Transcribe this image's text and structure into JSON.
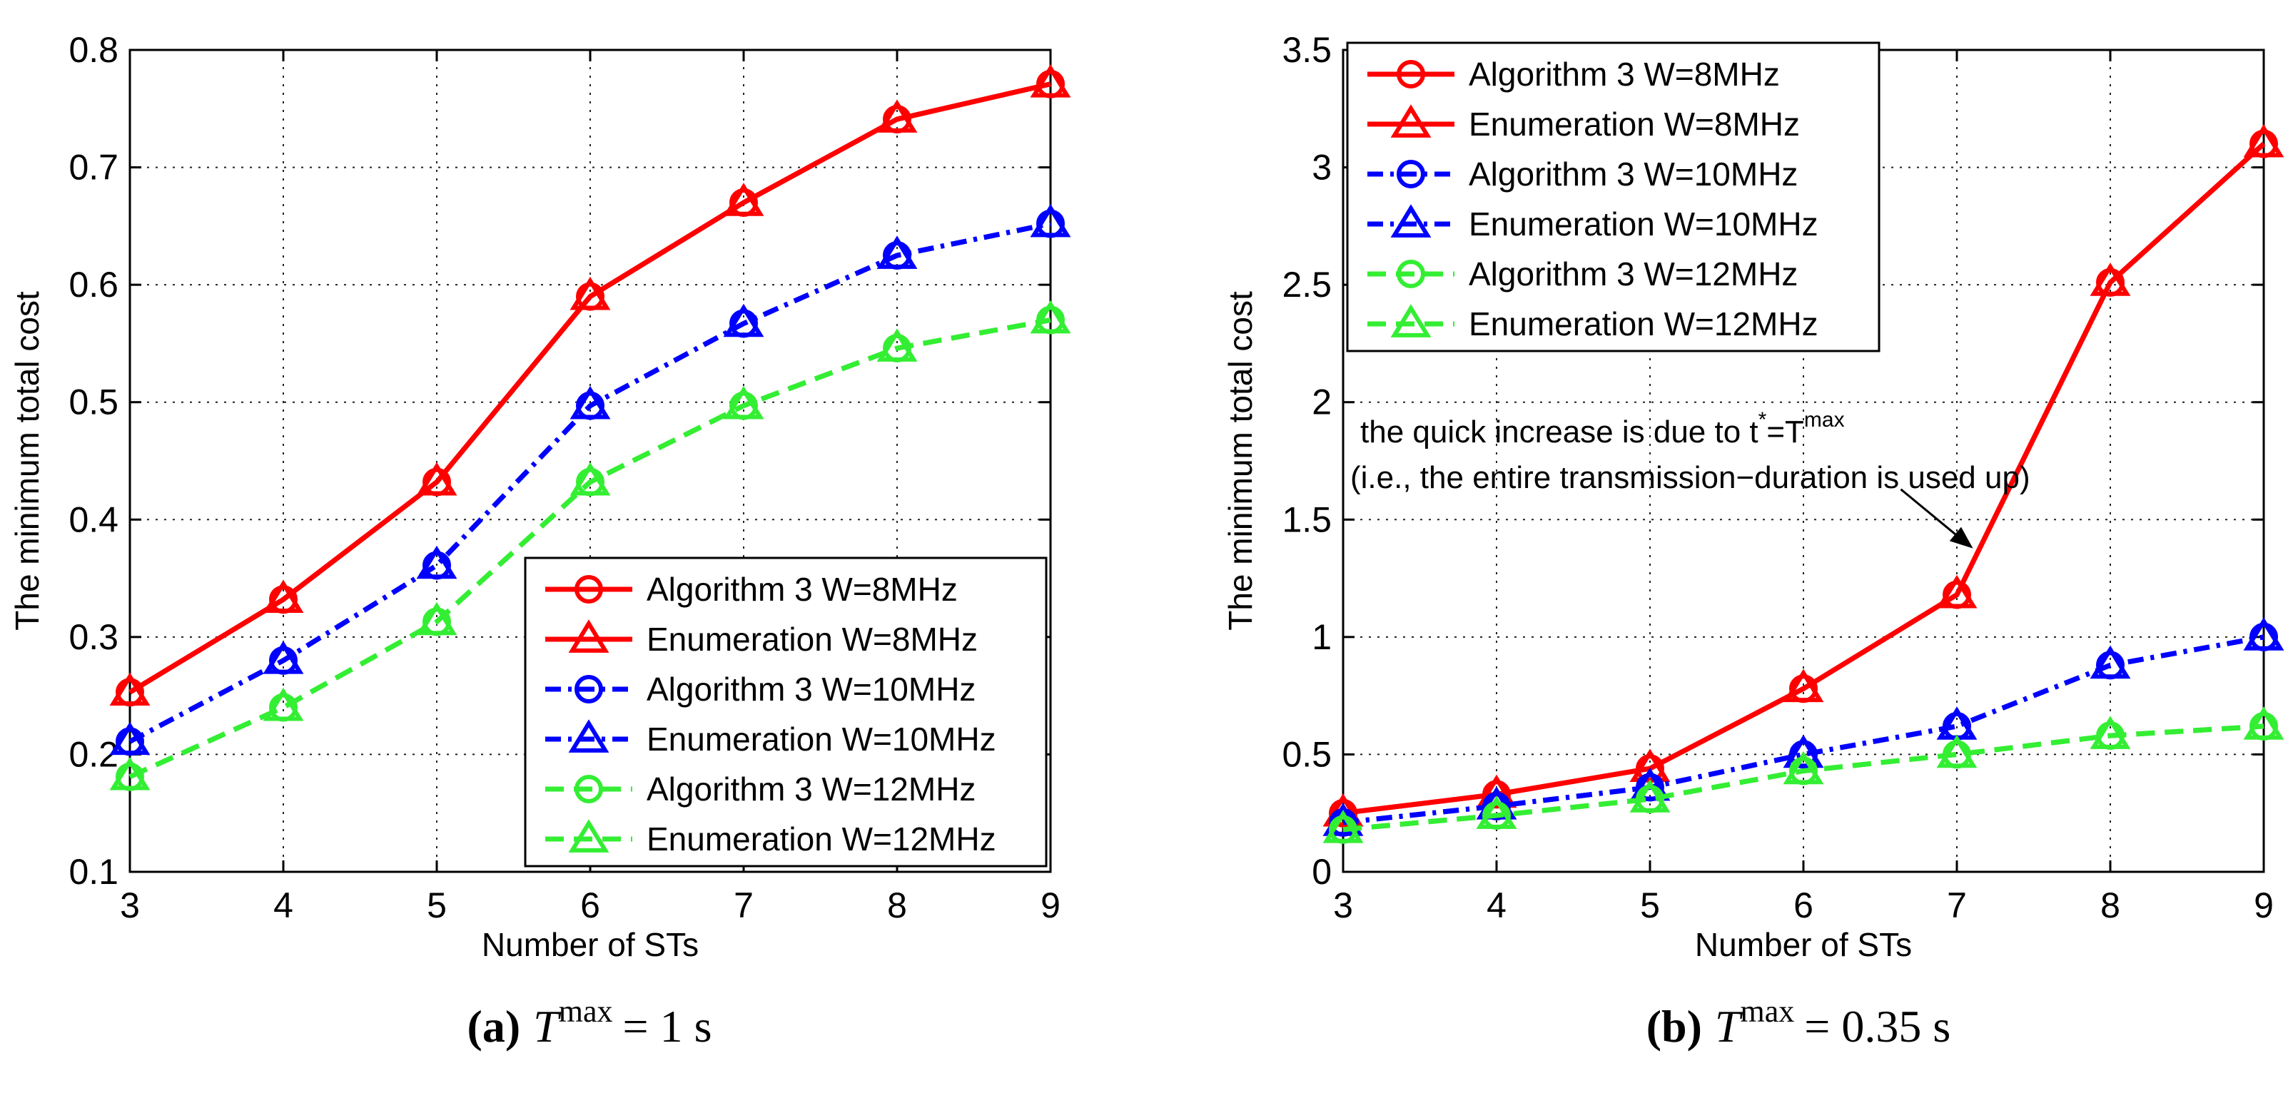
{
  "chart_data": [
    {
      "type": "line",
      "panel_label": "(a)",
      "caption_symbol": "T",
      "caption_superscript": "max",
      "caption_value": "= 1 s",
      "xlabel": "Number of STs",
      "ylabel": "The minimum total cost",
      "x": [
        3,
        4,
        5,
        6,
        7,
        8,
        9
      ],
      "xlim": [
        3,
        9
      ],
      "ylim": [
        0.1,
        0.8
      ],
      "xticks": [
        "3",
        "4",
        "5",
        "6",
        "7",
        "8",
        "9"
      ],
      "yticks": [
        "0.1",
        "0.2",
        "0.3",
        "0.4",
        "0.5",
        "0.6",
        "0.7",
        "0.8"
      ],
      "grid": true,
      "legend_position": "bottom-right",
      "series": [
        {
          "name": "Algorithm 3 W=8MHz",
          "values": [
            0.253,
            0.332,
            0.432,
            0.59,
            0.67,
            0.741,
            0.771
          ],
          "color": "#ff0000",
          "dash": "solid",
          "marker": "circle"
        },
        {
          "name": "Enumeration W=8MHz",
          "values": [
            0.253,
            0.332,
            0.432,
            0.59,
            0.67,
            0.741,
            0.771
          ],
          "color": "#ff0000",
          "dash": "solid",
          "marker": "triangle"
        },
        {
          "name": "Algorithm 3 W=10MHz",
          "values": [
            0.211,
            0.28,
            0.361,
            0.497,
            0.567,
            0.625,
            0.652
          ],
          "color": "#0000ff",
          "dash": "dashdot",
          "marker": "circle"
        },
        {
          "name": "Enumeration W=10MHz",
          "values": [
            0.211,
            0.28,
            0.361,
            0.497,
            0.567,
            0.625,
            0.652
          ],
          "color": "#0000ff",
          "dash": "dashdot",
          "marker": "triangle"
        },
        {
          "name": "Algorithm 3 W=12MHz",
          "values": [
            0.181,
            0.24,
            0.313,
            0.432,
            0.497,
            0.546,
            0.57
          ],
          "color": "#33ee33",
          "dash": "dashed",
          "marker": "circle"
        },
        {
          "name": "Enumeration W=12MHz",
          "values": [
            0.181,
            0.24,
            0.313,
            0.432,
            0.497,
            0.546,
            0.57
          ],
          "color": "#33ee33",
          "dash": "dashed",
          "marker": "triangle"
        }
      ]
    },
    {
      "type": "line",
      "panel_label": "(b)",
      "caption_symbol": "T",
      "caption_superscript": "max",
      "caption_value": "= 0.35 s",
      "xlabel": "Number of STs",
      "ylabel": "The minimum total cost",
      "x": [
        3,
        4,
        5,
        6,
        7,
        8,
        9
      ],
      "xlim": [
        3,
        9
      ],
      "ylim": [
        0,
        3.5
      ],
      "xticks": [
        "3",
        "4",
        "5",
        "6",
        "7",
        "8",
        "9"
      ],
      "yticks": [
        "0",
        "0.5",
        "1",
        "1.5",
        "2",
        "2.5",
        "3",
        "3.5"
      ],
      "grid": true,
      "legend_position": "top-left",
      "annotation": {
        "line1": "the quick increase is due to t",
        "line1_superscript": "*",
        "line1_tail": "=T",
        "line1_tail_superscript": "max",
        "line2": "(i.e., the entire transmission−duration is used up)",
        "arrow_target": {
          "x": 7.1,
          "y": 1.38
        }
      },
      "series": [
        {
          "name": "Algorithm 3 W=8MHz",
          "values": [
            0.25,
            0.33,
            0.44,
            0.78,
            1.18,
            2.51,
            3.1
          ],
          "color": "#ff0000",
          "dash": "solid",
          "marker": "circle"
        },
        {
          "name": "Enumeration W=8MHz",
          "values": [
            0.25,
            0.33,
            0.44,
            0.78,
            1.18,
            2.51,
            3.1
          ],
          "color": "#ff0000",
          "dash": "solid",
          "marker": "triangle"
        },
        {
          "name": "Algorithm 3 W=10MHz",
          "values": [
            0.21,
            0.28,
            0.36,
            0.5,
            0.62,
            0.88,
            1.0
          ],
          "color": "#0000ff",
          "dash": "dashdot",
          "marker": "circle"
        },
        {
          "name": "Enumeration W=10MHz",
          "values": [
            0.21,
            0.28,
            0.36,
            0.5,
            0.62,
            0.88,
            1.0
          ],
          "color": "#0000ff",
          "dash": "dashdot",
          "marker": "triangle"
        },
        {
          "name": "Algorithm 3 W=12MHz",
          "values": [
            0.18,
            0.24,
            0.31,
            0.43,
            0.5,
            0.58,
            0.62
          ],
          "color": "#33ee33",
          "dash": "dashed",
          "marker": "circle"
        },
        {
          "name": "Enumeration W=12MHz",
          "values": [
            0.18,
            0.24,
            0.31,
            0.43,
            0.5,
            0.58,
            0.62
          ],
          "color": "#33ee33",
          "dash": "dashed",
          "marker": "triangle"
        }
      ]
    }
  ]
}
